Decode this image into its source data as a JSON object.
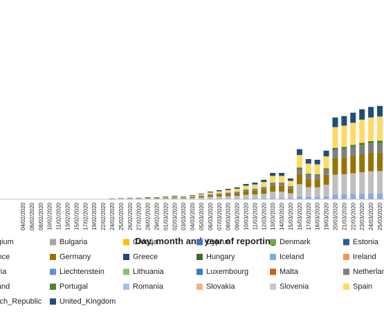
{
  "chart_data": {
    "type": "stacked_bar",
    "x_label": "Day, month and year of reporting",
    "categories": [
      "04/02/2020",
      "06/02/2020",
      "08/02/2020",
      "10/02/2020",
      "11/02/2020",
      "13/02/2020",
      "15/02/2020",
      "17/02/2020",
      "19/02/2020",
      "22/02/2020",
      "24/02/2020",
      "25/02/2020",
      "26/02/2020",
      "27/02/2020",
      "28/02/2020",
      "29/02/2020",
      "01/03/2020",
      "02/03/2020",
      "03/03/2020",
      "04/03/2020",
      "05/03/2020",
      "06/03/2020",
      "07/03/2020",
      "08/03/2020",
      "09/03/2020",
      "10/03/2020",
      "11/03/2020",
      "12/03/2020",
      "13/03/2020",
      "14/03/2020",
      "15/03/2020",
      "16/03/2020",
      "17/03/2020",
      "18/03/2020",
      "19/03/2020",
      "20/03/2020",
      "21/03/2020",
      "22/03/2020",
      "23/03/2020",
      "24/03/2020",
      "25/03/2020"
    ],
    "ylim": [
      0,
      40000
    ],
    "series": [
      {
        "name": "Belgium",
        "color": "#8faadc",
        "values": [
          0,
          0,
          0,
          0,
          0,
          0,
          0,
          0,
          0,
          0,
          0,
          0,
          20,
          20,
          30,
          30,
          40,
          40,
          40,
          50,
          60,
          80,
          90,
          100,
          120,
          150,
          160,
          190,
          260,
          260,
          200,
          620,
          500,
          500,
          620,
          1000,
          1050,
          1100,
          1150,
          1200,
          1200
        ]
      },
      {
        "name": "Bulgaria",
        "color": "#a5a5a5",
        "values": [
          0,
          0,
          0,
          0,
          0,
          0,
          0,
          0,
          0,
          0,
          0,
          0,
          0,
          0,
          0,
          0,
          0,
          0,
          0,
          0,
          0,
          0,
          0,
          0,
          0,
          0,
          0,
          0,
          0,
          0,
          0,
          0,
          0,
          0,
          0,
          0,
          0,
          0,
          0,
          0,
          0
        ]
      },
      {
        "name": "Croatia",
        "color": "#ffc000",
        "values": [
          0,
          0,
          0,
          0,
          0,
          0,
          0,
          0,
          0,
          0,
          0,
          0,
          0,
          0,
          0,
          0,
          0,
          0,
          0,
          0,
          0,
          0,
          0,
          0,
          0,
          0,
          0,
          0,
          0,
          0,
          0,
          0,
          0,
          0,
          0,
          0,
          0,
          0,
          0,
          0,
          0
        ]
      },
      {
        "name": "Cyprus",
        "color": "#4472c4",
        "values": [
          0,
          0,
          0,
          0,
          0,
          0,
          0,
          0,
          0,
          0,
          0,
          0,
          0,
          0,
          0,
          0,
          0,
          0,
          0,
          0,
          0,
          0,
          0,
          0,
          0,
          0,
          0,
          0,
          0,
          0,
          0,
          0,
          0,
          0,
          0,
          0,
          0,
          0,
          0,
          0,
          0
        ]
      },
      {
        "name": "Denmark",
        "color": "#70ad47",
        "values": [
          0,
          0,
          0,
          0,
          0,
          0,
          0,
          0,
          0,
          0,
          0,
          0,
          0,
          0,
          0,
          0,
          0,
          0,
          0,
          0,
          0,
          0,
          0,
          0,
          0,
          0,
          0,
          0,
          0,
          0,
          0,
          0,
          0,
          0,
          0,
          0,
          0,
          0,
          0,
          0,
          0
        ]
      },
      {
        "name": "Estonia",
        "color": "#255e91",
        "values": [
          0,
          0,
          0,
          0,
          0,
          0,
          0,
          0,
          0,
          0,
          0,
          0,
          0,
          0,
          0,
          0,
          0,
          0,
          0,
          0,
          0,
          0,
          0,
          0,
          0,
          0,
          0,
          0,
          0,
          0,
          0,
          0,
          0,
          0,
          0,
          0,
          0,
          0,
          0,
          0,
          0
        ]
      },
      {
        "name": "France",
        "color": "#bfbfbf",
        "values": [
          0,
          0,
          0,
          0,
          0,
          0,
          0,
          0,
          0,
          0,
          50,
          60,
          80,
          80,
          110,
          110,
          150,
          180,
          150,
          220,
          290,
          400,
          460,
          520,
          590,
          760,
          830,
          960,
          1300,
          1300,
          1030,
          2500,
          2000,
          1970,
          2400,
          4100,
          4150,
          4300,
          4450,
          4600,
          4650
        ]
      },
      {
        "name": "Germany",
        "color": "#997300",
        "values": [
          0,
          0,
          0,
          0,
          0,
          0,
          0,
          0,
          0,
          0,
          50,
          60,
          80,
          80,
          110,
          110,
          130,
          170,
          130,
          200,
          260,
          350,
          420,
          480,
          540,
          710,
          780,
          900,
          1220,
          1220,
          970,
          2100,
          1700,
          1650,
          2050,
          3400,
          3450,
          3600,
          3750,
          3850,
          3900
        ]
      },
      {
        "name": "Greece",
        "color": "#264478",
        "values": [
          0,
          0,
          0,
          0,
          0,
          0,
          0,
          0,
          0,
          0,
          0,
          0,
          0,
          0,
          0,
          0,
          0,
          0,
          0,
          0,
          0,
          0,
          0,
          0,
          0,
          0,
          0,
          0,
          0,
          0,
          0,
          0,
          0,
          0,
          0,
          0,
          0,
          0,
          0,
          0,
          0
        ]
      },
      {
        "name": "Hungary",
        "color": "#43682b",
        "values": [
          0,
          0,
          0,
          0,
          0,
          0,
          0,
          0,
          0,
          0,
          0,
          0,
          0,
          0,
          0,
          0,
          0,
          0,
          0,
          0,
          0,
          0,
          0,
          0,
          0,
          0,
          0,
          0,
          0,
          0,
          0,
          0,
          0,
          0,
          0,
          0,
          0,
          0,
          0,
          0,
          0
        ]
      },
      {
        "name": "Iceland",
        "color": "#7cafdd",
        "values": [
          0,
          0,
          0,
          0,
          0,
          0,
          0,
          0,
          0,
          0,
          0,
          0,
          0,
          0,
          0,
          0,
          0,
          0,
          0,
          0,
          0,
          0,
          0,
          0,
          0,
          0,
          0,
          0,
          0,
          0,
          0,
          0,
          0,
          0,
          0,
          0,
          0,
          0,
          0,
          0,
          0
        ]
      },
      {
        "name": "Ireland",
        "color": "#f1975a",
        "values": [
          0,
          0,
          0,
          0,
          0,
          0,
          0,
          0,
          0,
          0,
          0,
          0,
          0,
          0,
          0,
          0,
          0,
          0,
          0,
          0,
          0,
          0,
          0,
          0,
          0,
          0,
          0,
          0,
          0,
          0,
          0,
          0,
          0,
          0,
          0,
          0,
          0,
          0,
          0,
          0,
          0
        ]
      },
      {
        "name": "Latvia",
        "color": "#d9d9d9",
        "values": [
          0,
          0,
          0,
          0,
          0,
          0,
          0,
          0,
          0,
          0,
          0,
          0,
          0,
          0,
          0,
          0,
          0,
          0,
          0,
          0,
          0,
          0,
          0,
          0,
          0,
          0,
          0,
          0,
          0,
          0,
          0,
          0,
          0,
          0,
          0,
          0,
          0,
          0,
          0,
          0,
          0
        ]
      },
      {
        "name": "Liechtenstein",
        "color": "#698ed0",
        "values": [
          0,
          0,
          0,
          0,
          0,
          0,
          0,
          0,
          0,
          0,
          0,
          0,
          0,
          0,
          0,
          0,
          0,
          0,
          0,
          0,
          0,
          0,
          0,
          0,
          0,
          0,
          0,
          0,
          0,
          0,
          0,
          0,
          0,
          0,
          0,
          0,
          0,
          0,
          0,
          0,
          0
        ]
      },
      {
        "name": "Lithuania",
        "color": "#8cc168",
        "values": [
          0,
          0,
          0,
          0,
          0,
          0,
          0,
          0,
          0,
          0,
          0,
          0,
          0,
          0,
          0,
          0,
          0,
          0,
          0,
          0,
          0,
          0,
          0,
          0,
          0,
          0,
          0,
          0,
          0,
          0,
          0,
          0,
          0,
          0,
          0,
          0,
          0,
          0,
          0,
          0,
          0
        ]
      },
      {
        "name": "Luxembourg",
        "color": "#327dc2",
        "values": [
          0,
          0,
          0,
          0,
          0,
          0,
          0,
          0,
          0,
          0,
          0,
          0,
          0,
          0,
          0,
          0,
          0,
          0,
          0,
          0,
          0,
          0,
          0,
          0,
          0,
          0,
          0,
          0,
          0,
          0,
          0,
          0,
          0,
          0,
          0,
          0,
          0,
          0,
          0,
          0,
          0
        ]
      },
      {
        "name": "Malta",
        "color": "#d26012",
        "values": [
          0,
          0,
          0,
          0,
          0,
          0,
          0,
          0,
          0,
          0,
          0,
          0,
          0,
          0,
          0,
          0,
          0,
          0,
          0,
          0,
          0,
          0,
          0,
          0,
          0,
          0,
          0,
          0,
          0,
          0,
          0,
          0,
          0,
          0,
          0,
          0,
          0,
          0,
          0,
          0,
          0
        ]
      },
      {
        "name": "Netherlands",
        "color": "#7f7f7f",
        "values": [
          0,
          0,
          0,
          0,
          0,
          0,
          0,
          0,
          0,
          0,
          0,
          0,
          20,
          20,
          40,
          40,
          60,
          80,
          60,
          90,
          120,
          160,
          190,
          220,
          250,
          320,
          350,
          410,
          550,
          550,
          430,
          1040,
          830,
          820,
          1010,
          1700,
          1750,
          1800,
          1850,
          1900,
          1900
        ]
      },
      {
        "name": "Poland",
        "color": "#ffe699",
        "values": [
          0,
          0,
          0,
          0,
          0,
          0,
          0,
          0,
          0,
          0,
          0,
          0,
          0,
          0,
          0,
          0,
          0,
          0,
          0,
          0,
          0,
          0,
          0,
          0,
          0,
          0,
          0,
          0,
          0,
          0,
          0,
          0,
          0,
          0,
          0,
          0,
          0,
          0,
          0,
          0,
          0
        ]
      },
      {
        "name": "Portugal",
        "color": "#548235",
        "values": [
          0,
          0,
          0,
          0,
          0,
          0,
          0,
          0,
          0,
          0,
          0,
          0,
          0,
          0,
          0,
          0,
          0,
          0,
          0,
          0,
          20,
          30,
          40,
          50,
          60,
          70,
          80,
          90,
          120,
          120,
          100,
          340,
          270,
          270,
          340,
          500,
          500,
          500,
          550,
          550,
          550
        ]
      },
      {
        "name": "Romania",
        "color": "#9dc3e6",
        "values": [
          0,
          0,
          0,
          0,
          0,
          0,
          0,
          0,
          0,
          0,
          0,
          0,
          0,
          0,
          0,
          0,
          0,
          0,
          0,
          0,
          0,
          0,
          0,
          0,
          0,
          0,
          0,
          0,
          0,
          0,
          0,
          0,
          0,
          0,
          0,
          0,
          0,
          0,
          0,
          0,
          0
        ]
      },
      {
        "name": "Slovakia",
        "color": "#f4b183",
        "values": [
          0,
          0,
          0,
          0,
          0,
          0,
          0,
          0,
          0,
          0,
          0,
          0,
          0,
          0,
          0,
          0,
          0,
          0,
          0,
          0,
          0,
          0,
          0,
          0,
          0,
          0,
          0,
          0,
          0,
          0,
          0,
          0,
          0,
          0,
          0,
          0,
          0,
          0,
          0,
          0,
          0
        ]
      },
      {
        "name": "Slovenia",
        "color": "#c9c9c9",
        "values": [
          0,
          0,
          0,
          0,
          0,
          0,
          0,
          0,
          0,
          0,
          0,
          0,
          0,
          0,
          0,
          0,
          0,
          0,
          0,
          0,
          0,
          0,
          0,
          0,
          0,
          0,
          0,
          0,
          0,
          0,
          0,
          0,
          0,
          0,
          0,
          0,
          0,
          0,
          0,
          0,
          0
        ]
      },
      {
        "name": "Spain",
        "color": "#ffd966",
        "values": [
          0,
          0,
          0,
          0,
          0,
          0,
          0,
          0,
          0,
          0,
          0,
          20,
          40,
          40,
          60,
          60,
          100,
          130,
          100,
          180,
          260,
          380,
          450,
          540,
          610,
          800,
          870,
          1020,
          1400,
          1400,
          1100,
          2600,
          2100,
          2050,
          2500,
          4300,
          4400,
          4600,
          4800,
          4900,
          5000
        ]
      },
      {
        "name": "Czech_Republic",
        "color": "#333f50",
        "values": [
          0,
          0,
          0,
          0,
          0,
          0,
          0,
          0,
          0,
          0,
          0,
          0,
          0,
          0,
          0,
          0,
          0,
          0,
          0,
          0,
          0,
          0,
          0,
          0,
          0,
          0,
          0,
          0,
          0,
          0,
          0,
          0,
          0,
          0,
          0,
          0,
          0,
          0,
          0,
          0,
          0
        ]
      },
      {
        "name": "United_Kingdom",
        "color": "#1f4e79",
        "values": [
          0,
          0,
          0,
          0,
          0,
          0,
          0,
          0,
          0,
          0,
          50,
          60,
          60,
          60,
          80,
          80,
          100,
          120,
          100,
          120,
          140,
          180,
          220,
          250,
          280,
          360,
          390,
          460,
          620,
          620,
          490,
          1200,
          950,
          940,
          1180,
          2000,
          2000,
          2100,
          2150,
          2200,
          2200
        ]
      }
    ]
  }
}
